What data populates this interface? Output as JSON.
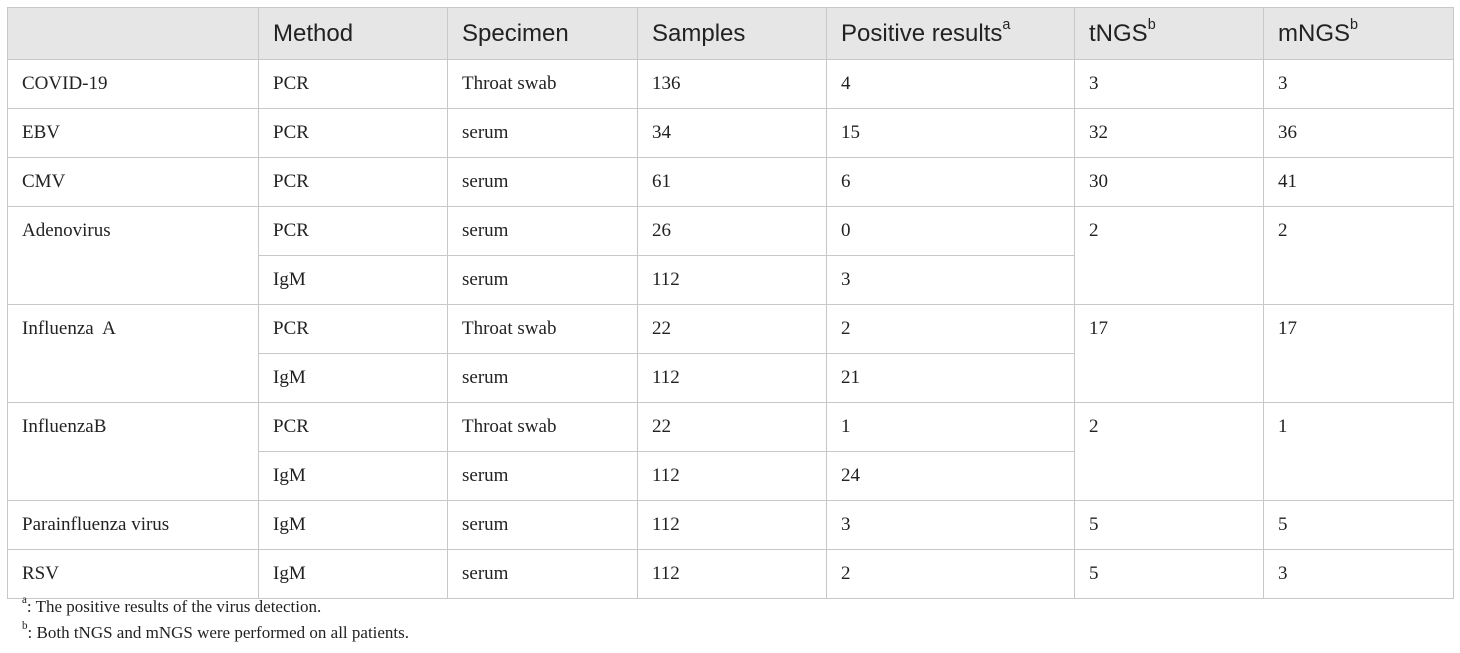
{
  "table": {
    "headers": [
      {
        "text": "",
        "sup": ""
      },
      {
        "text": "Method",
        "sup": ""
      },
      {
        "text": "Specimen",
        "sup": ""
      },
      {
        "text": "Samples",
        "sup": ""
      },
      {
        "text": "Positive results",
        "sup": "a"
      },
      {
        "text": "tNGS",
        "sup": "b"
      },
      {
        "text": "mNGS",
        "sup": "b"
      }
    ],
    "groups": [
      {
        "virus": "COVID-19",
        "tngs": "3",
        "mngs": "3",
        "rows": [
          {
            "method": "PCR",
            "specimen": "Throat swab",
            "samples": "136",
            "positive": "4"
          }
        ]
      },
      {
        "virus": "EBV",
        "tngs": "32",
        "mngs": "36",
        "rows": [
          {
            "method": "PCR",
            "specimen": "serum",
            "samples": "34",
            "positive": "15"
          }
        ]
      },
      {
        "virus": "CMV",
        "tngs": "30",
        "mngs": "41",
        "rows": [
          {
            "method": "PCR",
            "specimen": "serum",
            "samples": "61",
            "positive": "6"
          }
        ]
      },
      {
        "virus": "Adenovirus",
        "tngs": "2",
        "mngs": "2",
        "rows": [
          {
            "method": "PCR",
            "specimen": "serum",
            "samples": "26",
            "positive": "0"
          },
          {
            "method": "IgM",
            "specimen": "serum",
            "samples": "112",
            "positive": "3"
          }
        ]
      },
      {
        "virus": "Influenza  A",
        "tngs": "17",
        "mngs": "17",
        "rows": [
          {
            "method": "PCR",
            "specimen": "Throat swab",
            "samples": "22",
            "positive": "2"
          },
          {
            "method": "IgM",
            "specimen": "serum",
            "samples": "112",
            "positive": "21"
          }
        ]
      },
      {
        "virus": "InfluenzaB",
        "tngs": "2",
        "mngs": "1",
        "rows": [
          {
            "method": "PCR",
            "specimen": "Throat swab",
            "samples": "22",
            "positive": "1"
          },
          {
            "method": "IgM",
            "specimen": "serum",
            "samples": "112",
            "positive": "24"
          }
        ]
      },
      {
        "virus": "Parainfluenza virus",
        "tngs": "5",
        "mngs": "5",
        "rows": [
          {
            "method": "IgM",
            "specimen": "serum",
            "samples": "112",
            "positive": "3"
          }
        ]
      },
      {
        "virus": "RSV",
        "tngs": "5",
        "mngs": "3",
        "rows": [
          {
            "method": "IgM",
            "specimen": "serum",
            "samples": "112",
            "positive": "2"
          }
        ]
      }
    ]
  },
  "footnotes": [
    {
      "mark": "a",
      "text": ": The positive results of the virus detection."
    },
    {
      "mark": "b",
      "text": ": Both tNGS and mNGS were performed on all patients."
    }
  ]
}
